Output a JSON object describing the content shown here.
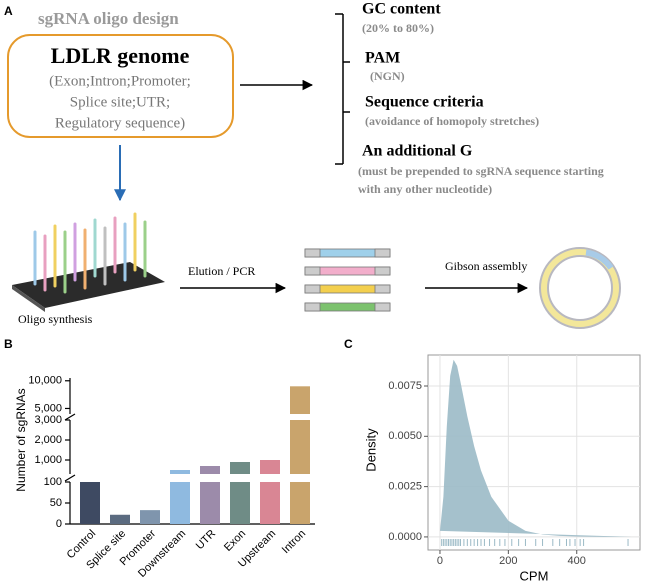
{
  "panel_labels": [
    "A",
    "B",
    "C"
  ],
  "diagram": {
    "title": "sgRNA oligo design",
    "genome_box": {
      "title": "LDLR genome",
      "lines": [
        "(Exon;Intron;Promoter;",
        "Splice site;UTR;",
        "Regulatory sequence)"
      ]
    },
    "criteria": [
      {
        "name": "GC content",
        "detail": [
          "(20% to 80%)"
        ]
      },
      {
        "name": "PAM",
        "detail": [
          "(NGN)"
        ]
      },
      {
        "name": "Sequence criteria",
        "detail": [
          "(avoidance of homopoly stretches)"
        ]
      },
      {
        "name": "An additional G",
        "detail": [
          "(must be prepended to sgRNA sequence starting",
          "with any other nucleotide)"
        ]
      }
    ],
    "steps": [
      "Oligo synthesis",
      "Elution / PCR",
      "Gibson assembly"
    ]
  },
  "chart_data": [
    {
      "type": "bar",
      "ylabel": "Number of sgRNAs",
      "categories": [
        "Control",
        "Splice site",
        "Promoter",
        "Downstream",
        "UTR",
        "Exon",
        "Upstream",
        "Intron"
      ],
      "values": [
        100,
        22,
        33,
        500,
        700,
        900,
        1000,
        9000
      ],
      "colors": [
        "#3e4a62",
        "#5b6b80",
        "#7f95ad",
        "#8fbae0",
        "#9c8baa",
        "#6f8c86",
        "#d98694",
        "#c9a46c"
      ],
      "segments": [
        {
          "ylim": [
            0,
            100
          ],
          "yticks": [
            0,
            50,
            100
          ]
        },
        {
          "ylim": [
            300,
            3000
          ],
          "yticks": [
            {
              "value": 1000,
              "label": "1,000"
            },
            {
              "value": 2000,
              "label": "2,000"
            },
            {
              "value": 3000,
              "label": "3,000"
            }
          ]
        },
        {
          "ylim": [
            4000,
            10500
          ],
          "yticks": [
            {
              "value": 5000,
              "label": "5,000"
            },
            {
              "value": 10000,
              "label": "10,000"
            }
          ]
        }
      ]
    },
    {
      "type": "area",
      "xlabel": "CPM",
      "ylabel": "Density",
      "color": "#9bbac6",
      "x": [
        0,
        10,
        20,
        30,
        40,
        50,
        60,
        80,
        100,
        120,
        150,
        200,
        250,
        300,
        350,
        400,
        450,
        500,
        560
      ],
      "values": [
        0.0003,
        0.002,
        0.0055,
        0.008,
        0.0088,
        0.0085,
        0.0077,
        0.006,
        0.0045,
        0.0033,
        0.002,
        0.0008,
        0.0003,
        0.00012,
        5e-05,
        2e-05,
        1e-05,
        0,
        0
      ],
      "rug": [
        5,
        10,
        15,
        20,
        25,
        30,
        35,
        40,
        45,
        50,
        55,
        60,
        70,
        80,
        90,
        100,
        110,
        120,
        130,
        145,
        160,
        175,
        190,
        210,
        230,
        250,
        280,
        300,
        330,
        350,
        370,
        380,
        395,
        410,
        420,
        550
      ],
      "xlim": [
        -35,
        585
      ],
      "ylim": [
        -0.00065,
        0.00904
      ],
      "xticks": [
        0,
        200,
        400
      ],
      "yticks": [
        {
          "value": 0,
          "label": "0.0000"
        },
        {
          "value": 0.0025,
          "label": "0.0025"
        },
        {
          "value": 0.005,
          "label": "0.0050"
        },
        {
          "value": 0.0075,
          "label": "0.0075"
        }
      ],
      "grid": true
    }
  ]
}
